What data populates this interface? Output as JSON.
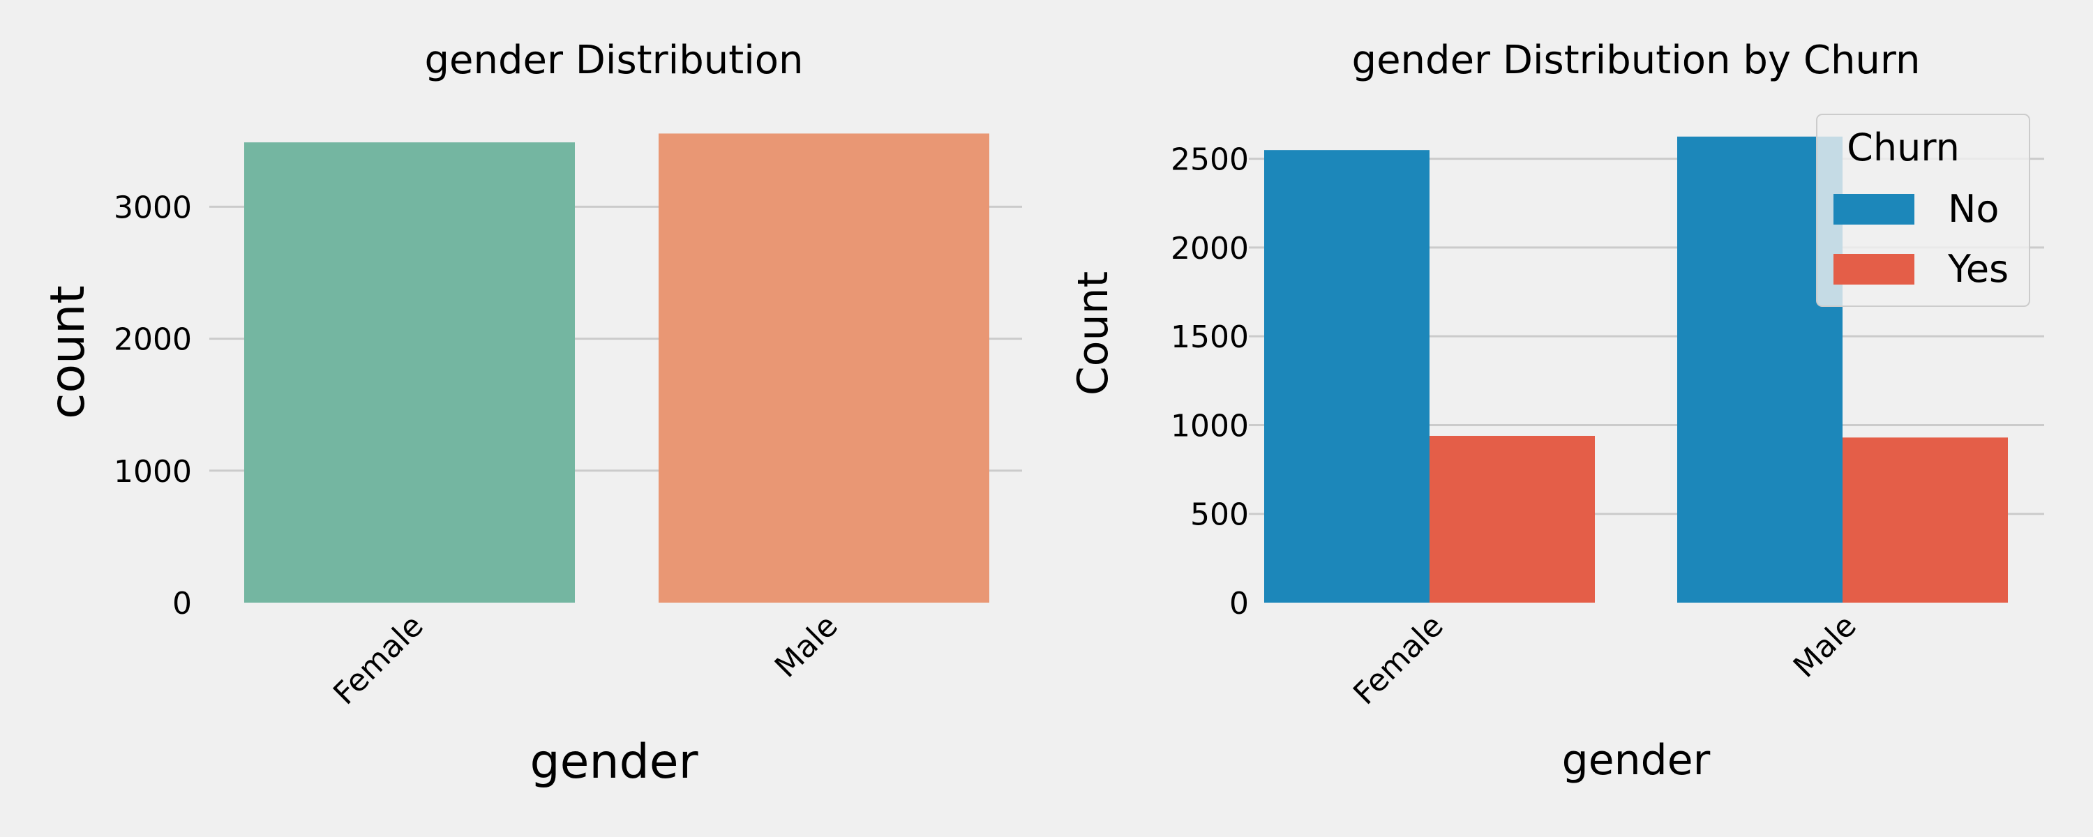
{
  "chart_data": [
    {
      "type": "bar",
      "title": "gender Distribution",
      "xlabel": "gender",
      "ylabel": "count",
      "categories": [
        "Female",
        "Male"
      ],
      "values": [
        3488,
        3555
      ],
      "colors": [
        "#74b6a1",
        "#e99774"
      ],
      "ylim": [
        0,
        3700
      ],
      "yticks": [
        0,
        1000,
        2000,
        3000
      ],
      "grid": "y"
    },
    {
      "type": "bar",
      "title": "gender Distribution by Churn",
      "xlabel": "gender",
      "ylabel": "Count",
      "categories": [
        "Female",
        "Male"
      ],
      "series": [
        {
          "name": "No",
          "values": [
            2549,
            2625
          ],
          "color": "#1c87ba"
        },
        {
          "name": "Yes",
          "values": [
            939,
            930
          ],
          "color": "#e45e48"
        }
      ],
      "legend_title": "Churn",
      "legend_position": "top-right",
      "ylim": [
        0,
        2750
      ],
      "yticks": [
        0,
        500,
        1000,
        1500,
        2000,
        2500
      ],
      "grid": "y"
    }
  ]
}
